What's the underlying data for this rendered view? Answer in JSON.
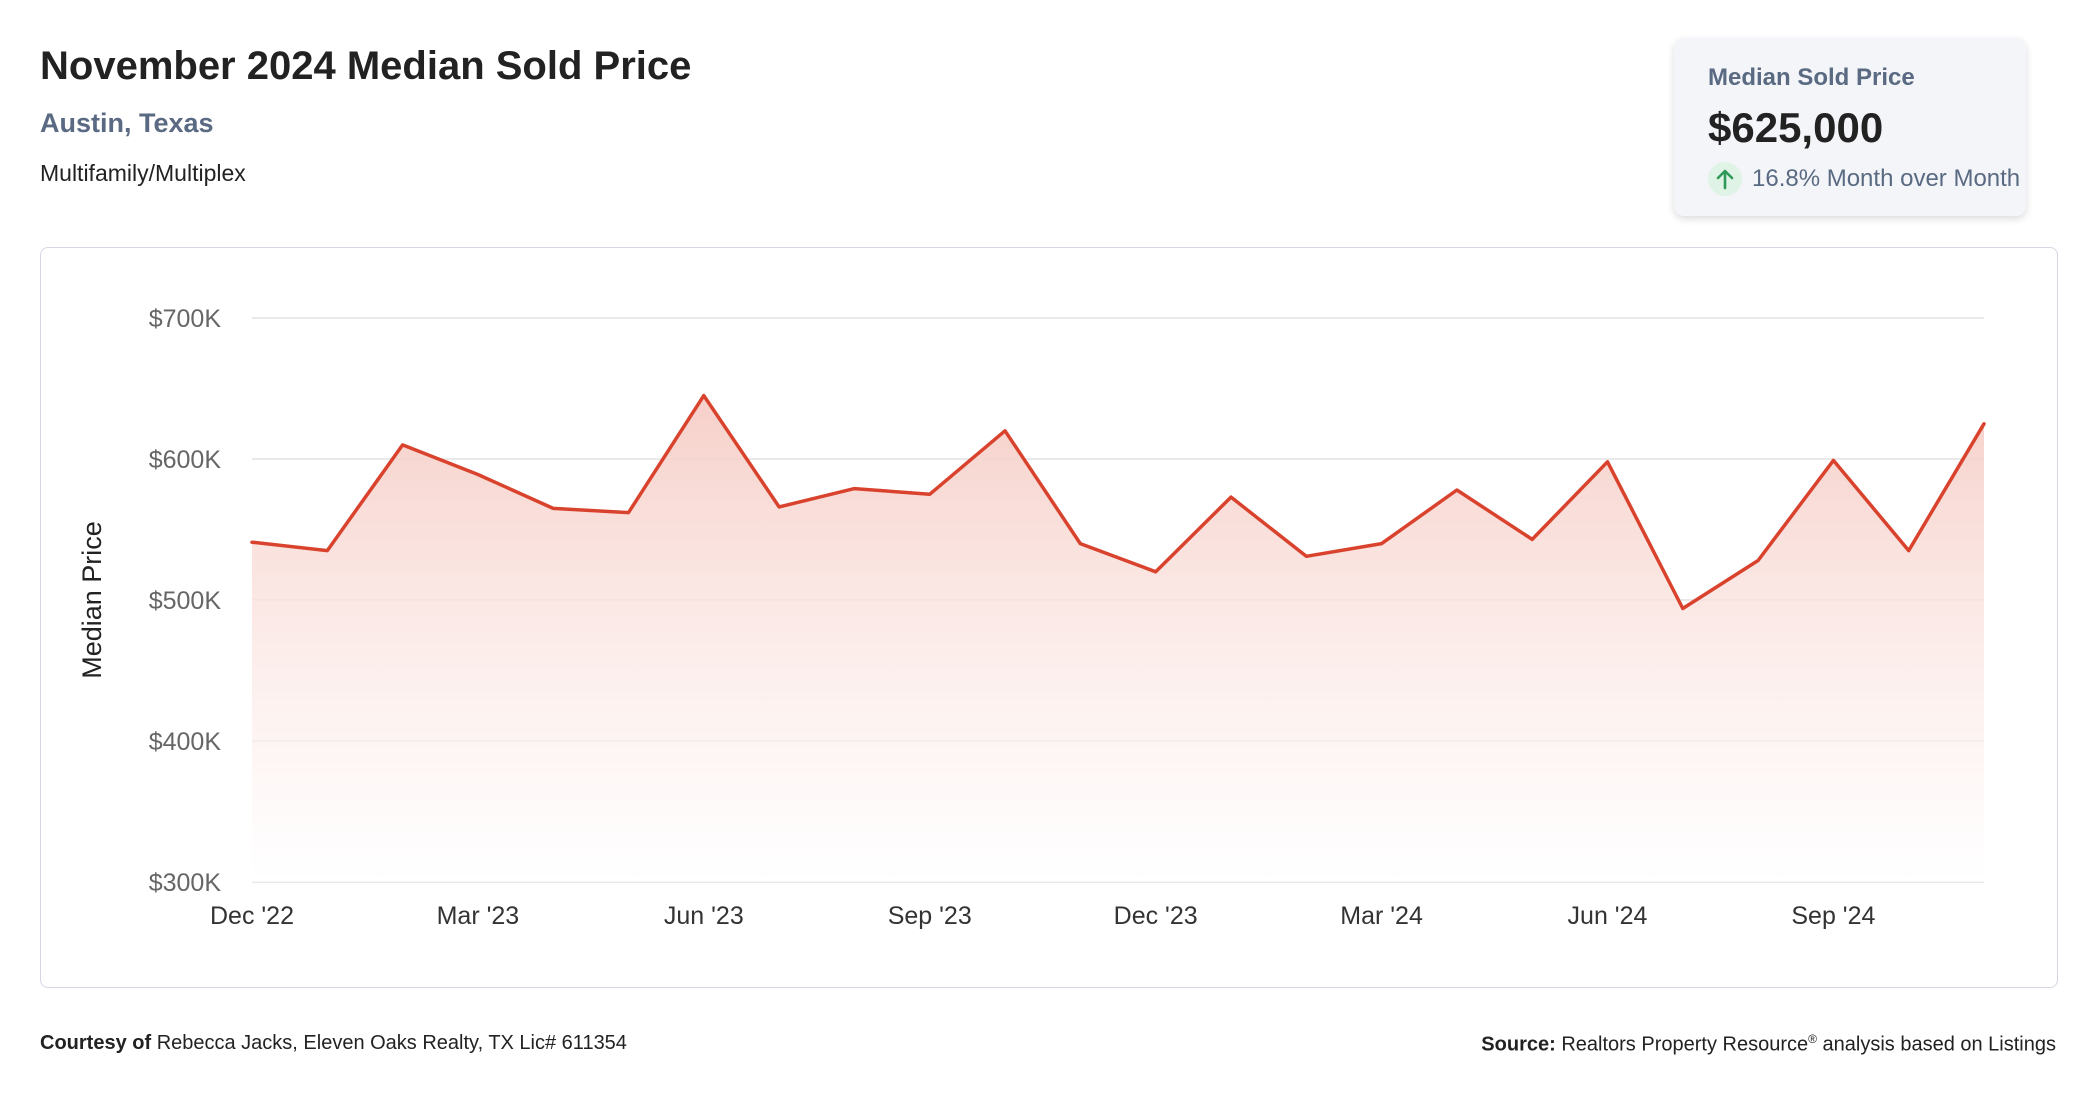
{
  "header": {
    "title": "November 2024 Median Sold Price",
    "location": "Austin, Texas",
    "property_type": "Multifamily/Multiplex"
  },
  "kpi": {
    "label": "Median Sold Price",
    "value": "$625,000",
    "change": "16.8% Month over Month",
    "direction": "up",
    "change_icon": "arrow-up-icon"
  },
  "colors": {
    "line": "#d9432e",
    "fill_top": "#f6cdc6",
    "grid": "#e2e2e2",
    "kpi_up": "#2f9a57"
  },
  "chart_data": {
    "type": "area",
    "title": "",
    "xlabel": "",
    "ylabel": "Median Price",
    "x": [
      "Dec '22",
      "Jan '23",
      "Feb '23",
      "Mar '23",
      "Apr '23",
      "May '23",
      "Jun '23",
      "Jul '23",
      "Aug '23",
      "Sep '23",
      "Oct '23",
      "Nov '23",
      "Dec '23",
      "Jan '24",
      "Feb '24",
      "Mar '24",
      "Apr '24",
      "May '24",
      "Jun '24",
      "Jul '24",
      "Aug '24",
      "Sep '24",
      "Oct '24",
      "Nov '24"
    ],
    "x_tick_labels": [
      "Dec '22",
      "Mar '23",
      "Jun '23",
      "Sep '23",
      "Dec '23",
      "Mar '24",
      "Jun '24",
      "Sep '24"
    ],
    "series": [
      {
        "values": [
          541000,
          535000,
          610000,
          589000,
          565000,
          562000,
          645000,
          566000,
          579000,
          575000,
          620000,
          540000,
          520000,
          573000,
          531000,
          540000,
          578000,
          543000,
          598000,
          494000,
          528000,
          599000,
          535000,
          625000
        ]
      }
    ],
    "ylim": [
      300000,
      700000
    ],
    "y_ticks": [
      300000,
      400000,
      500000,
      600000,
      700000
    ],
    "y_tick_labels": [
      "$300K",
      "$400K",
      "$500K",
      "$600K",
      "$700K"
    ],
    "grid": true,
    "legend": "none"
  },
  "footer": {
    "courtesy_label": "Courtesy of",
    "courtesy_text": "Rebecca Jacks, Eleven Oaks Realty, TX Lic# 611354",
    "source_label": "Source:",
    "source_text_1": "Realtors Property Resource",
    "source_sup": "®",
    "source_text_2": "analysis based on Listings"
  }
}
